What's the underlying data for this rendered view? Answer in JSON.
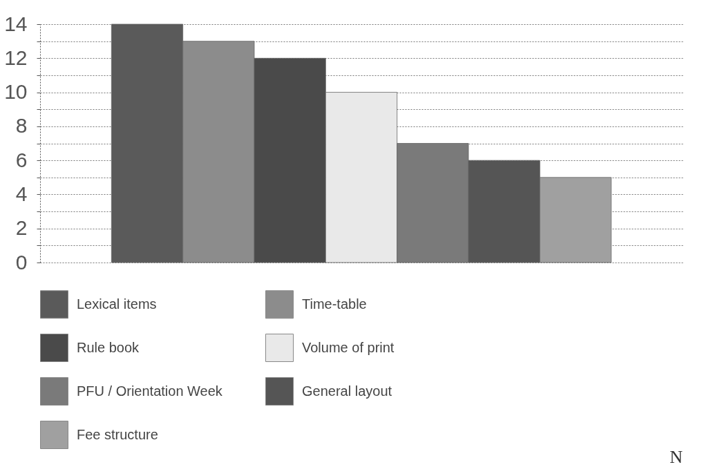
{
  "chart_data": {
    "type": "bar",
    "categories": [
      null
    ],
    "series": [
      {
        "name": "Lexical items",
        "color": "#5a5a5a",
        "values": [
          14
        ]
      },
      {
        "name": "Time-table",
        "color": "#8c8c8c",
        "values": [
          13
        ]
      },
      {
        "name": "Rule book",
        "color": "#4a4a4a",
        "values": [
          12
        ]
      },
      {
        "name": "Volume of print",
        "color": "#e9e9e9",
        "values": [
          10
        ]
      },
      {
        "name": "PFU / Orientation Week",
        "color": "#7a7a7a",
        "values": [
          7
        ]
      },
      {
        "name": "General layout",
        "color": "#555555",
        "values": [
          6
        ]
      },
      {
        "name": "Fee structure",
        "color": "#a0a0a0",
        "values": [
          5
        ]
      }
    ],
    "ylim": [
      0,
      14
    ],
    "yticks": [
      0,
      {
        "value": 1,
        "label": null
      },
      2,
      {
        "value": 3,
        "label": null
      },
      4,
      {
        "value": 5,
        "label": null
      },
      6,
      {
        "value": 7,
        "label": null
      },
      8,
      {
        "value": 9,
        "label": null
      },
      10,
      {
        "value": 11,
        "label": null
      },
      12,
      {
        "value": 13,
        "label": null
      },
      14
    ],
    "grid": "y",
    "legend": "bottom",
    "tick_labels": "y",
    "annotations": [
      "N"
    ]
  }
}
